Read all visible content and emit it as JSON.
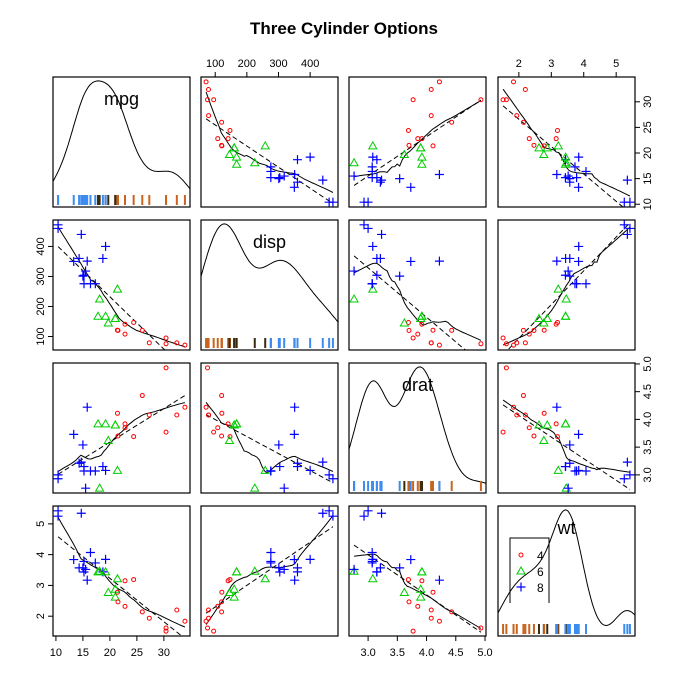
{
  "chart_data": {
    "type": "scatter-matrix",
    "title": "Three Cylinder Options",
    "group_variable": "cyl",
    "groups": [
      {
        "value": "4",
        "symbol": "circle",
        "color": "#ff0000"
      },
      {
        "value": "6",
        "symbol": "triangle",
        "color": "#00cd00"
      },
      {
        "value": "8",
        "symbol": "plus",
        "color": "#0000ff"
      }
    ],
    "rug_colors": {
      "4": "#c8641e",
      "6": "#3a2a10",
      "8": "#3c8cf0"
    },
    "legend": {
      "position": "inside wt diagonal panel, top-left",
      "entries": [
        "4",
        "6",
        "8"
      ]
    },
    "variables": [
      {
        "name": "mpg",
        "ticks": [
          10,
          15,
          20,
          25,
          30
        ],
        "tick_labels": [
          "10",
          "15",
          "20",
          "25",
          "30"
        ]
      },
      {
        "name": "disp",
        "ticks": [
          100,
          200,
          300,
          400
        ],
        "tick_labels": [
          "100",
          "200",
          "300",
          "400"
        ]
      },
      {
        "name": "drat",
        "ticks": [
          3.0,
          3.5,
          4.0,
          4.5,
          5.0
        ],
        "tick_labels": [
          "3.0",
          "3.5",
          "4.0",
          "4.5",
          "5.0"
        ]
      },
      {
        "name": "wt",
        "ticks": [
          2,
          3,
          4,
          5
        ],
        "tick_labels": [
          "2",
          "3",
          "4",
          "5"
        ]
      }
    ],
    "cyl": [
      6,
      6,
      4,
      6,
      8,
      6,
      8,
      4,
      4,
      6,
      6,
      8,
      8,
      8,
      8,
      8,
      8,
      4,
      4,
      4,
      4,
      8,
      8,
      8,
      8,
      4,
      4,
      4,
      8,
      6,
      8,
      4
    ],
    "mpg": [
      21.0,
      21.0,
      22.8,
      21.4,
      18.7,
      18.1,
      14.3,
      24.4,
      22.8,
      19.2,
      17.8,
      16.4,
      17.3,
      15.2,
      10.4,
      10.4,
      14.7,
      32.4,
      30.4,
      33.9,
      21.5,
      15.5,
      15.2,
      13.3,
      19.2,
      27.3,
      26.0,
      30.4,
      15.8,
      19.7,
      15.0,
      21.4
    ],
    "disp": [
      160,
      160,
      108,
      258,
      360,
      225,
      360,
      146.7,
      140.8,
      167.6,
      167.6,
      275.8,
      275.8,
      275.8,
      472,
      460,
      440,
      78.7,
      75.7,
      71.1,
      120.1,
      318,
      304,
      350,
      400,
      79,
      120.3,
      95.1,
      351,
      145,
      301,
      121
    ],
    "drat": [
      3.9,
      3.9,
      3.85,
      3.08,
      3.15,
      2.76,
      3.21,
      3.69,
      3.92,
      3.92,
      3.92,
      3.07,
      3.07,
      3.07,
      2.93,
      3.0,
      3.23,
      4.08,
      4.93,
      4.22,
      3.7,
      2.76,
      3.15,
      3.73,
      3.08,
      4.08,
      4.43,
      3.77,
      4.22,
      3.62,
      3.54,
      4.11
    ],
    "wt": [
      2.62,
      2.875,
      2.32,
      3.215,
      3.44,
      3.46,
      3.57,
      3.19,
      3.15,
      3.44,
      3.44,
      4.07,
      3.73,
      3.78,
      5.25,
      5.424,
      5.345,
      2.2,
      1.615,
      1.835,
      2.465,
      3.52,
      3.435,
      3.84,
      3.845,
      1.935,
      2.14,
      1.513,
      3.17,
      2.77,
      3.57,
      2.78
    ],
    "fits": {
      "linear": "dashed",
      "smoother": "solid (loess, span 0.5)"
    },
    "diagonal": "density with rug"
  }
}
